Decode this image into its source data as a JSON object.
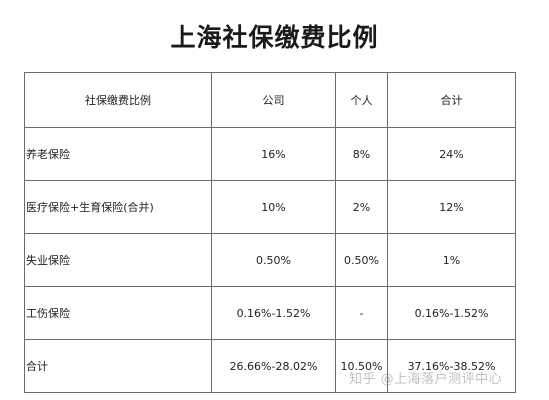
{
  "title": "上海社保缴费比例",
  "table": {
    "headers": [
      "社保缴费比例",
      "公司",
      "个人",
      "合计"
    ],
    "rows": [
      {
        "item": "养老保险",
        "company": "16%",
        "personal": "8%",
        "total": "24%"
      },
      {
        "item": "医疗保险+生育保险(合并)",
        "company": "10%",
        "personal": "2%",
        "total": "12%"
      },
      {
        "item": "失业保险",
        "company": "0.50%",
        "personal": "0.50%",
        "total": "1%"
      },
      {
        "item": "工伤保险",
        "company": "0.16%-1.52%",
        "personal": "-",
        "total": "0.16%-1.52%"
      },
      {
        "item": "合计",
        "company": "26.66%-28.02%",
        "personal": "10.50%",
        "total": "37.16%-38.52%"
      }
    ]
  },
  "watermark": "知乎 @上海落户测评中心"
}
